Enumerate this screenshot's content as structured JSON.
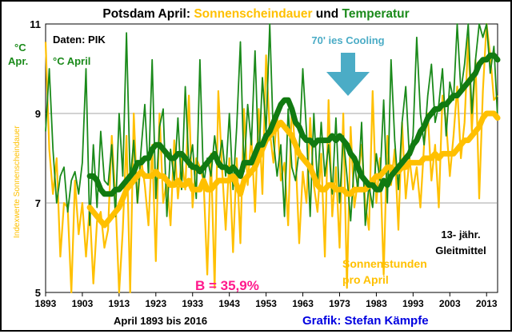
{
  "chart_data": {
    "type": "line",
    "title": {
      "part1": "Potsdam April: ",
      "part2": "Sonnenscheindauer",
      "part3": " und ",
      "part4": "Temperatur"
    },
    "ylabel_left": "°C Apr.",
    "ylabel_right": "Indexwerte Sonnenscheindauer",
    "xlabel": "April 1893 bis 2016",
    "credit": "Grafik: Stefan Kämpfe",
    "source": "Daten: PIK",
    "ylim": [
      5,
      11
    ],
    "y_ticks": [
      "5",
      "7",
      "9",
      "11"
    ],
    "x_ticks": [
      "1893",
      "1903",
      "1913",
      "1923",
      "1933",
      "1943",
      "1953",
      "1963",
      "1973",
      "1983",
      "1993",
      "2003",
      "2013"
    ],
    "xlim": [
      1893,
      2016
    ],
    "annotations": {
      "cooling": "70' ies Cooling",
      "temp_label": "°C April",
      "smooth_line1": "13- jähr.",
      "smooth_line2": "Gleitmittel",
      "sun_line1": "Sonnenstunden",
      "sun_line2": "pro April",
      "b_value": "B = 35,9%"
    },
    "colors": {
      "temperature": "#1a8a1a",
      "temperature_smooth": "#117a11",
      "sunshine": "#ffc000",
      "sunshine_smooth": "#ffc000",
      "title": "#000000",
      "cooling": "#4bacc6",
      "arrow": "#4bacc6",
      "credit": "#0000e0",
      "b_value": "#ff1a8c"
    },
    "series": [
      {
        "name": "°C April",
        "values": [
          8.6,
          10.0,
          8.2,
          7.0,
          7.6,
          7.8,
          6.8,
          7.5,
          7.7,
          7.2,
          7.9,
          10.0,
          6.5,
          8.3,
          6.9,
          8.6,
          7.5,
          7.4,
          8.3,
          6.7,
          9.0,
          7.6,
          10.8,
          7.5,
          8.4,
          7.0,
          8.2,
          9.2,
          7.6,
          10.2,
          7.1,
          8.7,
          9.1,
          6.7,
          8.2,
          7.5,
          8.9,
          7.3,
          9.6,
          7.8,
          8.3,
          7.1,
          10.2,
          7.4,
          8.0,
          7.6,
          8.5,
          7.8,
          8.4,
          7.6,
          9.0,
          7.3,
          8.7,
          10.6,
          7.7,
          9.2,
          8.3,
          10.4,
          7.9,
          9.8,
          8.6,
          11.0,
          8.4,
          7.6,
          8.3,
          6.7,
          9.1,
          7.8,
          7.5,
          8.2,
          10.0,
          8.6,
          6.7,
          9.0,
          7.4,
          8.8,
          7.6,
          8.3,
          7.2,
          8.9,
          7.0,
          8.5,
          7.6,
          6.6,
          7.9,
          7.3,
          8.8,
          6.5,
          7.4,
          6.9,
          8.1,
          7.5,
          9.3,
          7.0,
          10.2,
          8.4,
          7.3,
          8.8,
          9.6,
          8.0,
          8.5,
          10.7,
          9.0,
          8.3,
          9.4,
          10.1,
          8.8,
          9.2,
          10.0,
          8.5,
          9.7,
          9.3,
          11.0,
          9.5,
          10.1,
          11.0,
          9.0,
          10.2,
          11.0,
          10.7,
          11.0,
          9.9,
          10.5,
          8.9
        ],
        "smooth": [
          null,
          null,
          null,
          null,
          null,
          null,
          null,
          null,
          null,
          null,
          null,
          null,
          7.6,
          7.6,
          7.5,
          7.3,
          7.2,
          7.2,
          7.2,
          7.3,
          7.3,
          7.4,
          7.5,
          7.6,
          7.7,
          7.9,
          7.9,
          8.0,
          8.0,
          8.2,
          8.3,
          8.3,
          8.2,
          8.1,
          8.0,
          8.0,
          8.1,
          8.1,
          8.0,
          7.9,
          7.8,
          7.8,
          7.7,
          7.8,
          7.9,
          8.0,
          8.1,
          7.9,
          7.8,
          7.8,
          7.7,
          7.8,
          7.7,
          7.6,
          7.9,
          7.9,
          7.9,
          8.1,
          8.3,
          8.3,
          8.5,
          8.6,
          8.8,
          9.0,
          9.2,
          9.3,
          9.3,
          9.1,
          8.8,
          8.7,
          8.5,
          8.4,
          8.4,
          8.3,
          8.4,
          8.4,
          8.4,
          8.4,
          8.5,
          8.4,
          8.5,
          8.4,
          8.3,
          8.1,
          8.0,
          7.8,
          7.6,
          7.5,
          7.4,
          7.4,
          7.3,
          7.3,
          7.5,
          7.4,
          7.6,
          7.7,
          7.8,
          7.9,
          8.0,
          8.1,
          8.3,
          8.4,
          8.6,
          8.7,
          8.9,
          9.0,
          9.1,
          9.1,
          9.2,
          9.2,
          9.3,
          9.4,
          9.4,
          9.5,
          9.6,
          9.7,
          9.8,
          9.9,
          10.1,
          10.2,
          10.2,
          10.3,
          10.3,
          10.2
        ]
      },
      {
        "name": "Sonnenstunden pro April",
        "values": [
          10.6,
          8.2,
          7.2,
          8.0,
          5.8,
          7.0,
          6.9,
          5.0,
          7.5,
          6.3,
          7.0,
          5.8,
          6.9,
          5.2,
          6.6,
          6.8,
          6.0,
          6.4,
          8.5,
          7.1,
          5.0,
          6.4,
          8.5,
          5.0,
          9.0,
          7.0,
          8.0,
          7.4,
          6.5,
          8.3,
          5.7,
          9.0,
          7.0,
          7.5,
          6.5,
          8.4,
          7.1,
          8.0,
          7.3,
          9.4,
          6.9,
          8.0,
          7.8,
          7.5,
          5.4,
          8.1,
          5.1,
          9.5,
          7.8,
          6.4,
          8.0,
          5.9,
          8.0,
          6.1,
          9.1,
          7.4,
          8.5,
          6.8,
          9.1,
          7.2,
          10.3,
          8.6,
          7.9,
          9.0,
          7.5,
          7.9,
          6.5,
          9.2,
          8.1,
          6.1,
          7.7,
          7.0,
          8.9,
          7.4,
          6.8,
          8.1,
          5.8,
          9.3,
          6.7,
          7.8,
          6.0,
          9.0,
          5.1,
          8.7,
          6.9,
          7.5,
          8.3,
          7.0,
          6.4,
          9.5,
          7.0,
          8.0,
          5.4,
          8.5,
          7.4,
          8.2,
          6.4,
          8.8,
          7.1,
          8.0,
          7.3,
          7.8,
          6.9,
          8.3,
          9.0,
          7.5,
          8.3,
          6.9,
          9.4,
          8.8,
          7.6,
          8.5,
          9.6,
          8.0,
          8.8,
          10.7,
          8.6,
          10.2,
          7.1,
          9.5,
          11.0,
          10.3,
          9.3,
          9.4
        ],
        "smooth": [
          null,
          null,
          null,
          null,
          null,
          null,
          null,
          null,
          null,
          null,
          null,
          null,
          6.9,
          6.8,
          6.7,
          6.6,
          6.5,
          6.6,
          6.7,
          6.8,
          6.9,
          7.1,
          7.3,
          7.4,
          7.5,
          7.6,
          7.7,
          7.6,
          7.6,
          7.6,
          7.7,
          7.6,
          7.6,
          7.5,
          7.4,
          7.4,
          7.5,
          7.4,
          7.4,
          7.5,
          7.3,
          7.3,
          7.3,
          7.5,
          7.3,
          7.3,
          7.4,
          7.5,
          7.5,
          7.5,
          7.5,
          7.6,
          7.4,
          7.2,
          7.5,
          7.6,
          7.7,
          7.8,
          8.0,
          8.2,
          8.4,
          8.5,
          8.6,
          8.7,
          8.8,
          8.7,
          8.6,
          8.5,
          8.3,
          8.1,
          8.0,
          7.9,
          7.8,
          7.6,
          7.4,
          7.3,
          7.3,
          7.4,
          7.4,
          7.3,
          7.3,
          7.3,
          7.2,
          7.2,
          7.3,
          7.3,
          7.3,
          7.3,
          7.4,
          7.5,
          7.6,
          7.6,
          7.7,
          7.8,
          7.8,
          7.7,
          7.7,
          7.8,
          7.8,
          7.9,
          7.9,
          7.9,
          7.9,
          8.0,
          8.0,
          8.0,
          8.1,
          8.0,
          8.1,
          8.1,
          8.1,
          8.1,
          8.2,
          8.3,
          8.4,
          8.4,
          8.5,
          8.6,
          8.7,
          8.9,
          9.0,
          9.0,
          9.0,
          8.9
        ]
      }
    ]
  }
}
